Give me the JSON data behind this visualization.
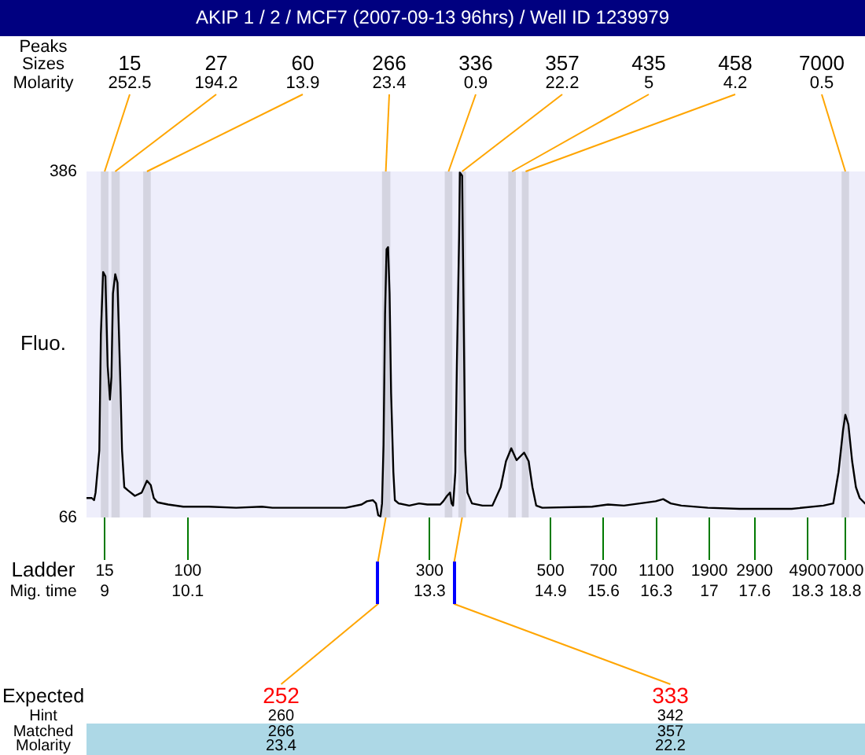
{
  "chart_data": {
    "type": "line",
    "title": "AKIP 1 / 2 / MCF7 (2007-09-13 96hrs) / Well ID 1239979",
    "ylabel": "Fluo.",
    "xlabel": "Mig. time",
    "x": [
      8.76,
      8.83,
      8.86,
      8.88,
      8.93,
      8.95,
      8.98,
      9.01,
      9.04,
      9.06,
      9.07,
      9.09,
      9.11,
      9.14,
      9.17,
      9.21,
      9.23,
      9.26,
      9.31,
      9.4,
      9.49,
      9.56,
      9.61,
      9.65,
      9.7,
      9.84,
      10.04,
      10.38,
      10.74,
      11.08,
      11.22,
      11.78,
      12.19,
      12.4,
      12.47,
      12.55,
      12.59,
      12.62,
      12.65,
      12.67,
      12.69,
      12.71,
      12.73,
      12.75,
      12.77,
      12.79,
      12.82,
      12.84,
      12.89,
      13.03,
      13.16,
      13.27,
      13.44,
      13.48,
      13.53,
      13.57,
      13.59,
      13.61,
      13.64,
      13.66,
      13.69,
      13.7,
      13.73,
      13.75,
      13.77,
      13.8,
      13.86,
      14,
      14.13,
      14.24,
      14.31,
      14.38,
      14.45,
      14.55,
      14.61,
      14.66,
      14.71,
      14.79,
      15.45,
      15.66,
      15.87,
      16.08,
      16.29,
      16.39,
      16.49,
      16.63,
      16.98,
      17.4,
      18.09,
      18.51,
      18.64,
      18.71,
      18.77,
      18.8,
      18.84,
      18.89,
      18.94,
      18.99,
      19.06
    ],
    "values": [
      84,
      84,
      82,
      89,
      128,
      235,
      293,
      289,
      206,
      186,
      175,
      196,
      273,
      291,
      283,
      186,
      128,
      94,
      91,
      86,
      89,
      100,
      96,
      84,
      80,
      78,
      76,
      76,
      75,
      76,
      75,
      75,
      75,
      78,
      81,
      82,
      79,
      68,
      67,
      79,
      133,
      254,
      314,
      316,
      273,
      181,
      108,
      82,
      79,
      77,
      79,
      78,
      78,
      81,
      86,
      89,
      79,
      77,
      108,
      206,
      326,
      385,
      382,
      254,
      128,
      89,
      79,
      77,
      77,
      94,
      118,
      130,
      119,
      126,
      118,
      94,
      77,
      75,
      76,
      78,
      77,
      79,
      81,
      83,
      79,
      77,
      75,
      74,
      74,
      77,
      79,
      108,
      147,
      161,
      152,
      118,
      94,
      84,
      79
    ],
    "color": "#000000",
    "xlim": [
      8.76,
      19.06
    ],
    "xticks": [
      9,
      10.1,
      13.3,
      14.9,
      15.6,
      16.3,
      17,
      17.6,
      18.3,
      18.8
    ],
    "ylim": [
      66,
      386
    ],
    "yticks": [
      66,
      386
    ],
    "bands": [
      {
        "axis": "x",
        "from": 8.95,
        "to": 9.05,
        "color": "#d4d4e0"
      },
      {
        "axis": "x",
        "from": 9.09,
        "to": 9.2,
        "color": "#d4d4e0"
      },
      {
        "axis": "x",
        "from": 9.51,
        "to": 9.61,
        "color": "#d4d4e0"
      },
      {
        "axis": "x",
        "from": 12.67,
        "to": 12.78,
        "color": "#d4d4e0"
      },
      {
        "axis": "x",
        "from": 13.5,
        "to": 13.6,
        "color": "#d4d4e0"
      },
      {
        "axis": "x",
        "from": 13.68,
        "to": 13.78,
        "color": "#d4d4e0"
      },
      {
        "axis": "x",
        "from": 14.34,
        "to": 14.44,
        "color": "#d4d4e0"
      },
      {
        "axis": "x",
        "from": 14.52,
        "to": 14.61,
        "color": "#d4d4e0"
      },
      {
        "axis": "x",
        "from": 18.75,
        "to": 18.85,
        "color": "#d4d4e0"
      }
    ],
    "annotations": [
      "Peaks",
      "Sizes",
      "Molarity",
      {
        "text": "15",
        "x": 9.0,
        "y": 386
      },
      {
        "text": "252.5",
        "x": 9.0,
        "y": 386
      },
      {
        "text": "27",
        "x": 9.14,
        "y": 386
      },
      {
        "text": "194.2",
        "x": 9.14,
        "y": 386
      },
      {
        "text": "60",
        "x": 9.56,
        "y": 386
      },
      {
        "text": "13.9",
        "x": 9.56,
        "y": 386
      },
      {
        "text": "266",
        "x": 12.72,
        "y": 386
      },
      {
        "text": "23.4",
        "x": 12.72,
        "y": 386
      },
      {
        "text": "336",
        "x": 13.55,
        "y": 386
      },
      {
        "text": "0.9",
        "x": 13.55,
        "y": 386
      },
      {
        "text": "357",
        "x": 13.73,
        "y": 386
      },
      {
        "text": "22.2",
        "x": 13.73,
        "y": 386
      },
      {
        "text": "435",
        "x": 14.39,
        "y": 386
      },
      {
        "text": "5",
        "x": 14.39,
        "y": 386
      },
      {
        "text": "458",
        "x": 14.57,
        "y": 386
      },
      {
        "text": "4.2",
        "x": 14.57,
        "y": 386
      },
      {
        "text": "7000",
        "x": 18.8,
        "y": 386
      },
      {
        "text": "0.5",
        "x": 18.8,
        "y": 386
      },
      "Ladder",
      "15",
      "100",
      "300",
      "500",
      "700",
      "1100",
      "1900",
      "2900",
      "4900",
      "7000",
      "Expected",
      {
        "text": "252",
        "x": 12.72,
        "y": 66
      },
      {
        "text": "333",
        "x": 13.73,
        "y": 66
      },
      "Hint",
      "260",
      "342",
      "Matched",
      "266",
      "357",
      "Molarity",
      "23.4",
      "22.2"
    ]
  }
}
